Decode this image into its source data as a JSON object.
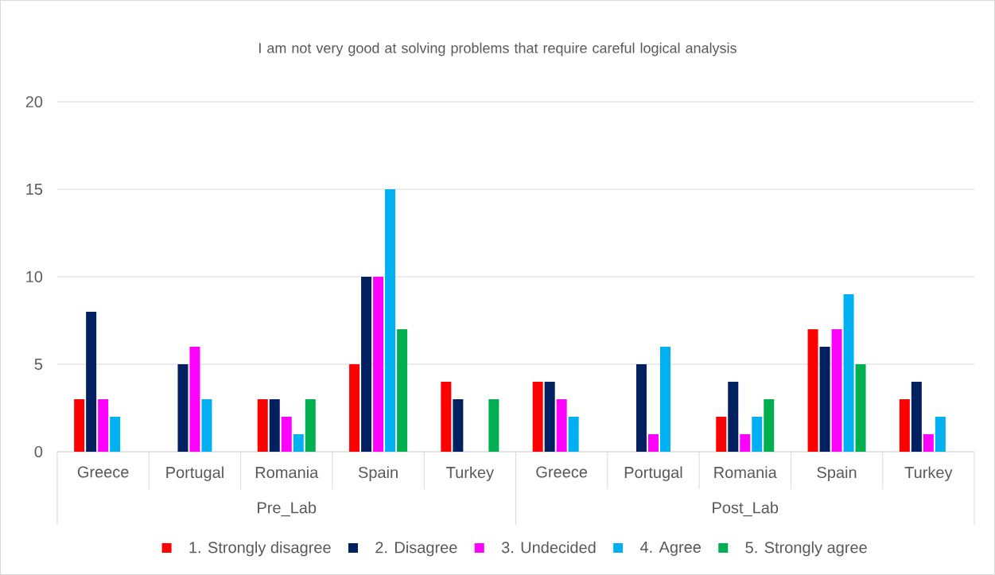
{
  "chart_data": {
    "type": "bar",
    "title": "I am not very good at solving problems that require careful logical analysis",
    "categories": [
      "Greece",
      "Portugal",
      "Romania",
      "Spain",
      "Turkey",
      "Greece",
      "Portugal",
      "Romania",
      "Spain",
      "Turkey"
    ],
    "annotations": [
      "Pre_Lab",
      "Post_Lab"
    ],
    "series": [
      {
        "name": "1. Strongly disagree",
        "color": "#ff0000",
        "values": [
          3,
          null,
          3,
          5,
          4,
          4,
          null,
          2,
          7,
          3
        ]
      },
      {
        "name": "2. Disagree",
        "color": "#002060",
        "values": [
          8,
          5,
          3,
          10,
          3,
          4,
          5,
          4,
          6,
          4
        ]
      },
      {
        "name": "3. Undecided",
        "color": "#ff00ff",
        "values": [
          3,
          6,
          2,
          10,
          null,
          3,
          1,
          1,
          7,
          1
        ]
      },
      {
        "name": "4. Agree",
        "color": "#00b0f0",
        "values": [
          2,
          3,
          1,
          15,
          null,
          2,
          6,
          2,
          9,
          2
        ]
      },
      {
        "name": "5. Strongly agree",
        "color": "#00b050",
        "values": [
          null,
          null,
          3,
          7,
          3,
          null,
          null,
          3,
          5,
          null
        ]
      }
    ],
    "ylim": [
      0,
      20
    ],
    "yticks": [
      0,
      5,
      10,
      15,
      20
    ],
    "grid": "y",
    "legend": "bottom"
  }
}
